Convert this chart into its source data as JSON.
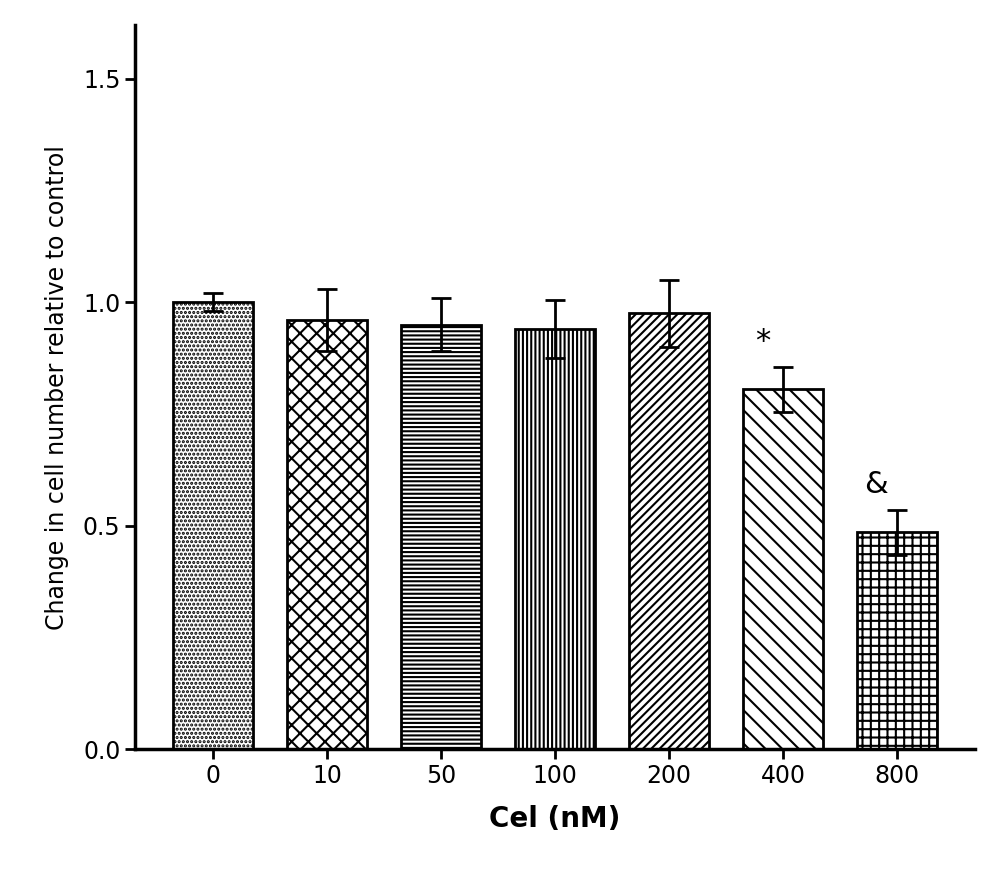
{
  "categories": [
    "0",
    "10",
    "50",
    "100",
    "200",
    "400",
    "800"
  ],
  "values": [
    1.0,
    0.96,
    0.95,
    0.94,
    0.975,
    0.805,
    0.485
  ],
  "errors": [
    0.02,
    0.07,
    0.06,
    0.065,
    0.075,
    0.05,
    0.05
  ],
  "hatch_list": [
    "....",
    "xx",
    "---",
    "|||",
    "////",
    "////",
    "++"
  ],
  "annotations": [
    "",
    "",
    "",
    "",
    "",
    "*",
    "&"
  ],
  "ann_offsets_x": [
    0,
    0,
    0,
    0,
    0,
    -0.18,
    -0.18
  ],
  "xlabel": "Cel (nM)",
  "ylabel": "Change in cell number relative to control",
  "ylim": [
    0.0,
    1.62
  ],
  "yticks": [
    0.0,
    0.5,
    1.0,
    1.5
  ],
  "bar_color": "white",
  "bar_edgecolor": "black",
  "background_color": "#ffffff",
  "bar_width": 0.7,
  "xlabel_fontsize": 20,
  "ylabel_fontsize": 17,
  "tick_fontsize": 17,
  "annotation_fontsize": 22,
  "spine_linewidth": 2.5
}
